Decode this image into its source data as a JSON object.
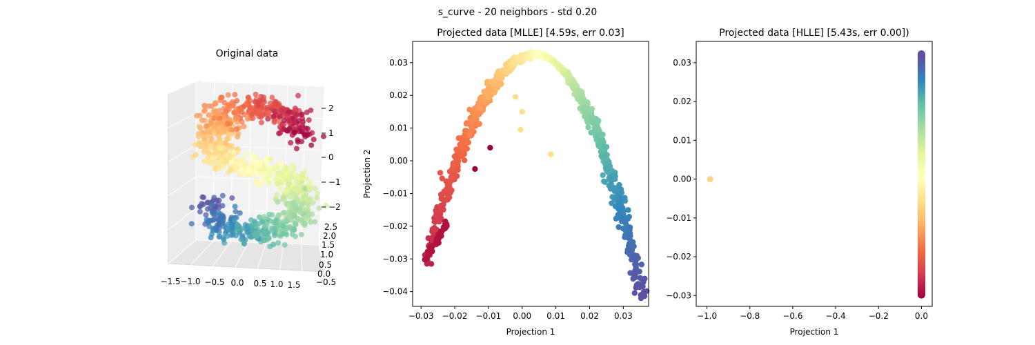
{
  "figure": {
    "suptitle": "s_curve - 20 neighbors - std 0.20"
  },
  "chart_data": [
    {
      "type": "scatter",
      "projection": "3d",
      "title": "Original data",
      "xlabel": "",
      "ylabel": "",
      "zlabel": "",
      "x_ticks": [
        "−1.5",
        "−1.0",
        "−0.5",
        "0.0",
        "0.5",
        "1.0",
        "1.5"
      ],
      "y_ticks": [
        "−0.5",
        "0.0",
        "0.5",
        "1.0",
        "1.5",
        "2.0",
        "2.5"
      ],
      "z_ticks": [
        "−2",
        "−1",
        "0",
        "1",
        "2"
      ],
      "xlim": [
        -1.7,
        1.7
      ],
      "ylim": [
        -0.6,
        2.6
      ],
      "zlim": [
        -2.6,
        2.6
      ],
      "colormap": "Spectral",
      "point_count": 1000,
      "description_of_shape": "S-shaped manifold colored by position along the curve (red top, yellow middle, blue/violet bottom)"
    },
    {
      "type": "scatter",
      "title": "Projected data [MLLE] [4.59s, err 0.03]",
      "xlabel": "Projection 1",
      "ylabel": "Projection 2",
      "xlim": [
        -0.0325,
        0.0375
      ],
      "ylim": [
        -0.0445,
        0.0365
      ],
      "x_ticks": [
        "−0.03",
        "−0.02",
        "−0.01",
        "0.00",
        "0.01",
        "0.02",
        "0.03"
      ],
      "y_ticks": [
        "−0.04",
        "−0.03",
        "−0.02",
        "−0.01",
        "0.00",
        "0.01",
        "0.02",
        "0.03"
      ],
      "colormap": "Spectral",
      "curve": {
        "shape": "inverted parabola",
        "apex": [
          0.004,
          0.0325
        ],
        "left_end": [
          -0.0285,
          -0.031
        ],
        "right_end": [
          0.0355,
          -0.041
        ]
      },
      "outliers": [
        {
          "x": -0.0095,
          "y": 0.004,
          "color": "#9e0142"
        },
        {
          "x": -0.014,
          "y": -0.0025,
          "color": "#9e0142"
        },
        {
          "x": -0.0005,
          "y": 0.0095,
          "color": "#fee08b"
        },
        {
          "x": 0.0,
          "y": 0.015,
          "color": "#fee08b"
        },
        {
          "x": -0.002,
          "y": 0.0195,
          "color": "#fee08b"
        },
        {
          "x": 0.0085,
          "y": 0.002,
          "color": "#fee08b"
        }
      ],
      "branch": {
        "from": [
          -0.0285,
          -0.0295
        ],
        "to": [
          -0.022,
          -0.019
        ],
        "color": "#b0123f"
      }
    },
    {
      "type": "scatter",
      "title": "Projected data [HLLE] [5.43s, err 0.00])",
      "xlabel": "Projection 1",
      "ylabel": "",
      "xlim": [
        -1.05,
        0.05
      ],
      "ylim": [
        -0.0328,
        0.0355
      ],
      "x_ticks": [
        "−1.0",
        "−0.8",
        "−0.6",
        "−0.4",
        "−0.2",
        "0.0"
      ],
      "y_ticks": [
        "−0.03",
        "−0.02",
        "−0.01",
        "0.00",
        "0.01",
        "0.02",
        "0.03"
      ],
      "colormap": "Spectral",
      "column": {
        "x": 0.0,
        "y_min": -0.0298,
        "y_max": 0.0322
      },
      "outliers": [
        {
          "x": -0.985,
          "y": 0.0,
          "color": "#fed481"
        }
      ]
    }
  ]
}
